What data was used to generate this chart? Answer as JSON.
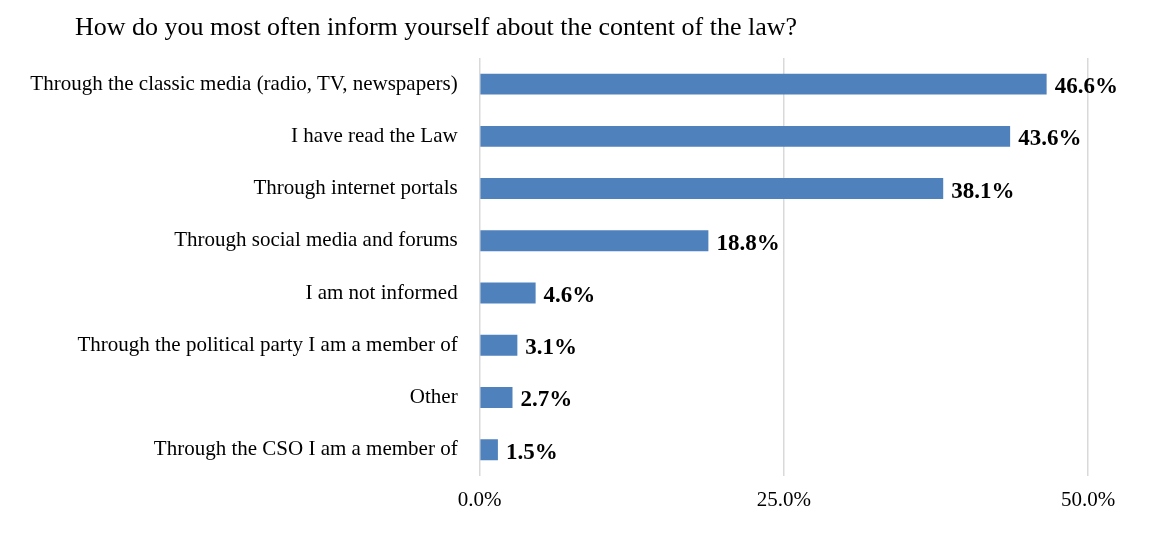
{
  "chart_data": {
    "type": "bar",
    "orientation": "horizontal",
    "title": "How do you most often inform yourself about the content of the law?",
    "categories": [
      "Through the classic media (radio, TV, newspapers)",
      "I have read the Law",
      "Through internet portals",
      "Through social media and forums",
      "I am not informed",
      "Through the political party I am a member of",
      "Other",
      "Through the CSO I am a member of"
    ],
    "values": [
      46.6,
      43.6,
      38.1,
      18.8,
      4.6,
      3.1,
      2.7,
      1.5
    ],
    "value_labels": [
      "46.6%",
      "43.6%",
      "38.1%",
      "18.8%",
      "4.6%",
      "3.1%",
      "2.7%",
      "1.5%"
    ],
    "color": "#4f81bd",
    "xlim": [
      0,
      50
    ],
    "xticks": [
      {
        "value": 0,
        "label": "0.0%"
      },
      {
        "value": 25,
        "label": "25.0%"
      },
      {
        "value": 50,
        "label": "50.0%"
      }
    ],
    "grid": "x",
    "legend": false
  }
}
